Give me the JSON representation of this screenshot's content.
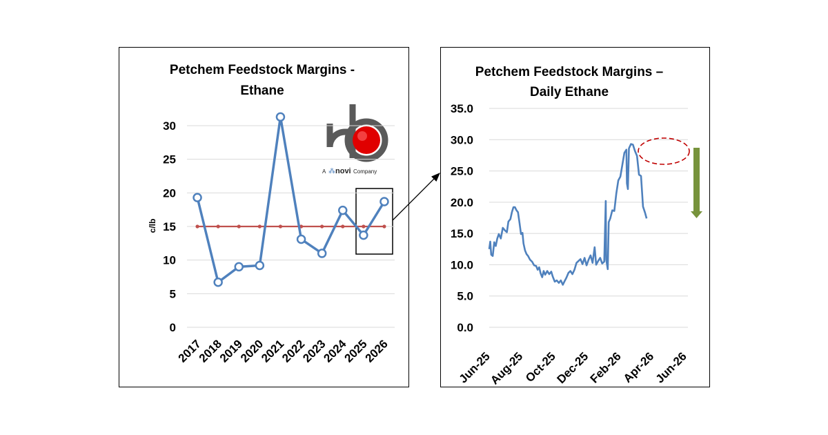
{
  "colors": {
    "series": "#4f81bd",
    "reference": "#c0504d",
    "grid": "#d9d9d9",
    "highlight_ellipse": "#c00000",
    "down_arrow": "#77933c"
  },
  "logo": {
    "company": "novi",
    "tagline_prefix": "A",
    "tagline_suffix": "Company"
  },
  "chart_data": [
    {
      "type": "line",
      "title_lines": [
        "Petchem Feedstock Margins -",
        "Ethane"
      ],
      "ylabel": "c/lb",
      "xlabel": "",
      "ylim": [
        0,
        30
      ],
      "yticks": [
        0,
        5,
        10,
        15,
        20,
        25,
        30
      ],
      "categories": [
        "2017",
        "2018",
        "2019",
        "2020",
        "2021",
        "2022",
        "2023",
        "2024",
        "2025",
        "2026"
      ],
      "series": [
        {
          "values": [
            19.3,
            6.7,
            9.0,
            9.2,
            31.3,
            13.1,
            11.0,
            17.4,
            13.7,
            18.7
          ],
          "marker": "open-circle"
        },
        {
          "values": [
            15,
            15,
            15,
            15,
            15,
            15,
            15,
            15,
            15,
            15
          ],
          "marker": "dot"
        }
      ],
      "grid": true,
      "legend": "none",
      "annotation": "box around 2025-2026 with arrow to daily chart"
    },
    {
      "type": "line",
      "title_lines": [
        "Petchem Feedstock Margins –",
        "Daily Ethane"
      ],
      "ylabel": "",
      "xlabel": "",
      "ylim": [
        0,
        35
      ],
      "yticks": [
        "0.0",
        "5.0",
        "10.0",
        "15.0",
        "20.0",
        "25.0",
        "30.0",
        "35.0"
      ],
      "xticks": [
        "Jun-25",
        "Aug-25",
        "Oct-25",
        "Dec-25",
        "Feb-26",
        "Apr-26",
        "Jun-26"
      ],
      "x_start": "2025-06-01",
      "x_end": "2026-06-30",
      "series": [
        {
          "points": [
            [
              "2025-06-01",
              12.5
            ],
            [
              "2025-06-03",
              13.7
            ],
            [
              "2025-06-05",
              11.6
            ],
            [
              "2025-06-08",
              11.4
            ],
            [
              "2025-06-11",
              13.6
            ],
            [
              "2025-06-14",
              13.0
            ],
            [
              "2025-06-17",
              14.2
            ],
            [
              "2025-06-20",
              14.9
            ],
            [
              "2025-06-24",
              14.2
            ],
            [
              "2025-06-28",
              15.9
            ],
            [
              "2025-07-02",
              15.5
            ],
            [
              "2025-07-06",
              15.2
            ],
            [
              "2025-07-09",
              16.9
            ],
            [
              "2025-07-13",
              17.3
            ],
            [
              "2025-07-16",
              18.4
            ],
            [
              "2025-07-19",
              19.2
            ],
            [
              "2025-07-22",
              19.2
            ],
            [
              "2025-07-25",
              18.7
            ],
            [
              "2025-07-28",
              18.4
            ],
            [
              "2025-07-31",
              16.7
            ],
            [
              "2025-08-03",
              14.9
            ],
            [
              "2025-08-06",
              15.1
            ],
            [
              "2025-08-08",
              13.4
            ],
            [
              "2025-08-11",
              12.3
            ],
            [
              "2025-08-14",
              11.7
            ],
            [
              "2025-08-17",
              11.4
            ],
            [
              "2025-08-21",
              10.8
            ],
            [
              "2025-08-25",
              10.5
            ],
            [
              "2025-08-29",
              9.9
            ],
            [
              "2025-09-02",
              9.8
            ],
            [
              "2025-09-05",
              9.2
            ],
            [
              "2025-09-08",
              9.6
            ],
            [
              "2025-09-11",
              8.6
            ],
            [
              "2025-09-14",
              8.0
            ],
            [
              "2025-09-17",
              9.0
            ],
            [
              "2025-09-20",
              8.4
            ],
            [
              "2025-09-24",
              9.0
            ],
            [
              "2025-09-28",
              8.5
            ],
            [
              "2025-10-02",
              8.9
            ],
            [
              "2025-10-05",
              8.1
            ],
            [
              "2025-10-09",
              7.3
            ],
            [
              "2025-10-13",
              7.5
            ],
            [
              "2025-10-17",
              7.1
            ],
            [
              "2025-10-21",
              7.5
            ],
            [
              "2025-10-25",
              6.8
            ],
            [
              "2025-10-28",
              7.3
            ],
            [
              "2025-11-01",
              7.9
            ],
            [
              "2025-11-05",
              8.7
            ],
            [
              "2025-11-09",
              9.0
            ],
            [
              "2025-11-13",
              8.5
            ],
            [
              "2025-11-17",
              9.2
            ],
            [
              "2025-11-21",
              10.3
            ],
            [
              "2025-11-25",
              10.6
            ],
            [
              "2025-11-29",
              10.9
            ],
            [
              "2025-12-03",
              10.1
            ],
            [
              "2025-12-07",
              11.1
            ],
            [
              "2025-12-11",
              9.9
            ],
            [
              "2025-12-15",
              10.8
            ],
            [
              "2025-12-19",
              11.5
            ],
            [
              "2025-12-23",
              10.3
            ],
            [
              "2025-12-27",
              12.8
            ],
            [
              "2025-12-30",
              10.0
            ],
            [
              "2026-01-03",
              10.6
            ],
            [
              "2026-01-07",
              11.1
            ],
            [
              "2026-01-11",
              10.2
            ],
            [
              "2026-01-15",
              10.5
            ],
            [
              "2026-01-18",
              20.2
            ],
            [
              "2026-01-19",
              10.8
            ],
            [
              "2026-01-22",
              9.3
            ],
            [
              "2026-01-24",
              16.8
            ],
            [
              "2026-01-27",
              17.4
            ],
            [
              "2026-01-31",
              18.7
            ],
            [
              "2026-02-04",
              18.6
            ],
            [
              "2026-02-08",
              21.4
            ],
            [
              "2026-02-12",
              23.5
            ],
            [
              "2026-02-16",
              24.1
            ],
            [
              "2026-02-20",
              26.0
            ],
            [
              "2026-02-24",
              27.9
            ],
            [
              "2026-02-28",
              28.4
            ],
            [
              "2026-03-01",
              23.0
            ],
            [
              "2026-03-03",
              22.1
            ],
            [
              "2026-03-05",
              28.6
            ],
            [
              "2026-03-09",
              29.3
            ],
            [
              "2026-03-13",
              29.2
            ],
            [
              "2026-03-17",
              28.2
            ],
            [
              "2026-03-21",
              27.4
            ],
            [
              "2026-03-25",
              24.4
            ],
            [
              "2026-03-29",
              24.2
            ],
            [
              "2026-04-02",
              19.3
            ],
            [
              "2026-04-06",
              18.3
            ],
            [
              "2026-04-09",
              17.4
            ]
          ]
        }
      ],
      "grid": true,
      "legend": "none",
      "annotations": [
        "dashed ellipse around peak",
        "green downward arrow"
      ]
    }
  ]
}
